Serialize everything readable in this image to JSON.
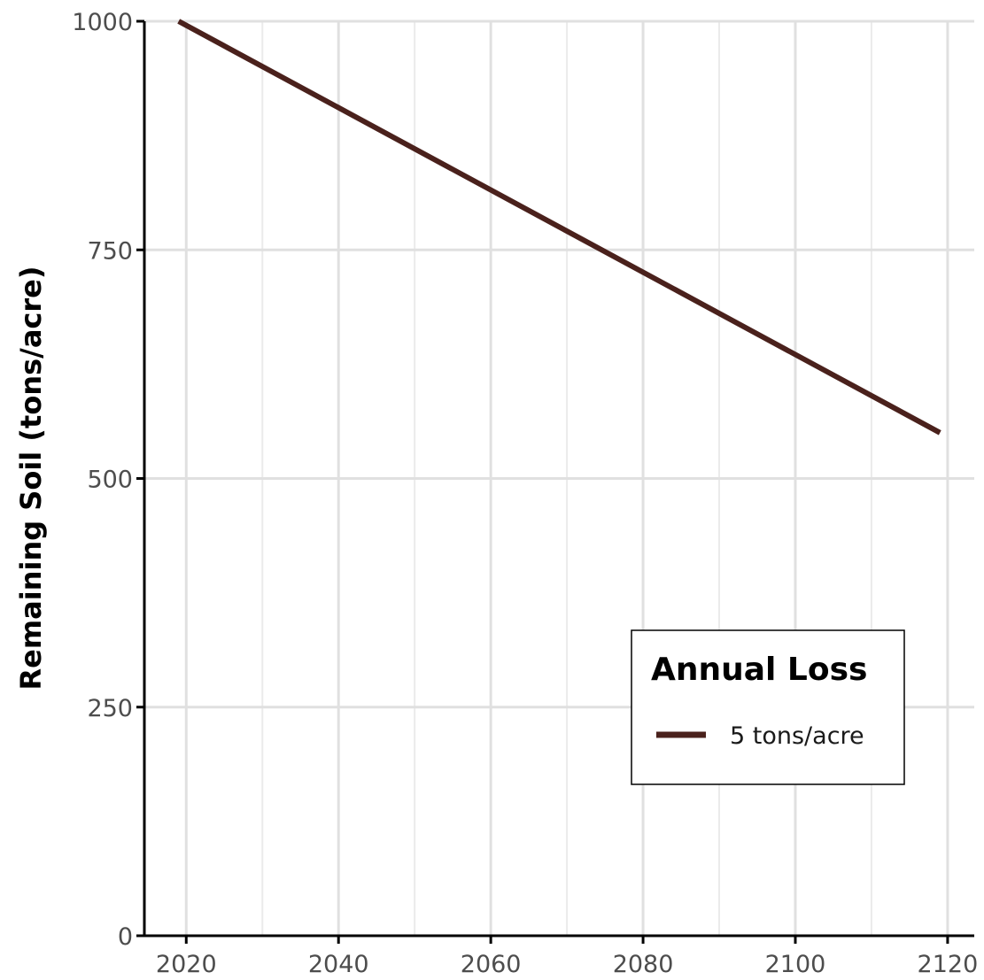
{
  "chart_data": {
    "type": "line",
    "title": "",
    "xlabel": "",
    "ylabel": "Remaining Soil (tons/acre)",
    "xlim": [
      2014.5,
      2123.5
    ],
    "ylim": [
      0,
      1000
    ],
    "x_ticks": [
      2020,
      2040,
      2060,
      2080,
      2100,
      2120
    ],
    "y_ticks": [
      0,
      250,
      500,
      750,
      1000
    ],
    "grid": true,
    "legend": {
      "title": "Annual Loss",
      "placement": "bottom-right"
    },
    "series": [
      {
        "name": "5 tons/acre",
        "color": "#4a211c",
        "x": [
          2019,
          2119
        ],
        "y": [
          1000,
          550
        ]
      }
    ]
  }
}
